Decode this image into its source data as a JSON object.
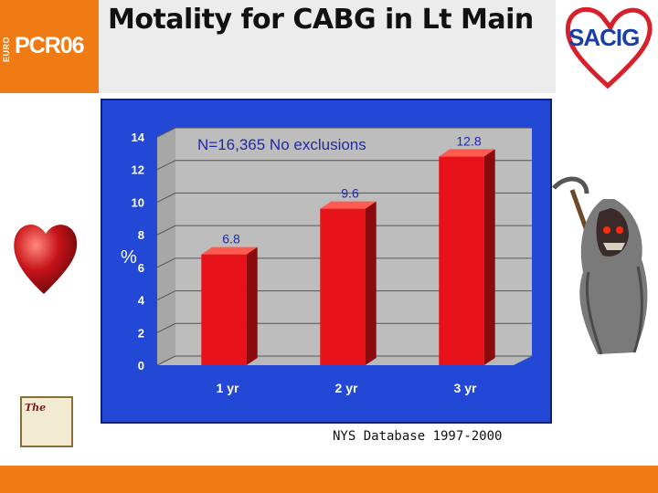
{
  "header": {
    "title": "Motality for CABG in Lt Main",
    "logo_prefix": "EURO",
    "logo_text": "PCR06",
    "right_logo_text": "SACIG"
  },
  "badge": {
    "text": "The"
  },
  "footer": {
    "source": "NYS Database 1997-2000"
  },
  "colors": {
    "orange": "#f07a14",
    "panel_blue": "#2448d6",
    "bar_red": "#e8121a"
  },
  "chart_data": {
    "type": "bar",
    "categories": [
      "1 yr",
      "2 yr",
      "3 yr"
    ],
    "values": [
      6.8,
      9.6,
      12.8
    ],
    "value_labels": [
      "6.8",
      "9.6",
      "12.8"
    ],
    "title": "",
    "annotation": "N=16,365 No exclusions",
    "xlabel": "",
    "ylabel": "%",
    "ylim": [
      0,
      14
    ],
    "yticks": [
      0,
      2,
      4,
      6,
      8,
      10,
      12,
      14
    ],
    "grid": true,
    "style": "3d"
  }
}
